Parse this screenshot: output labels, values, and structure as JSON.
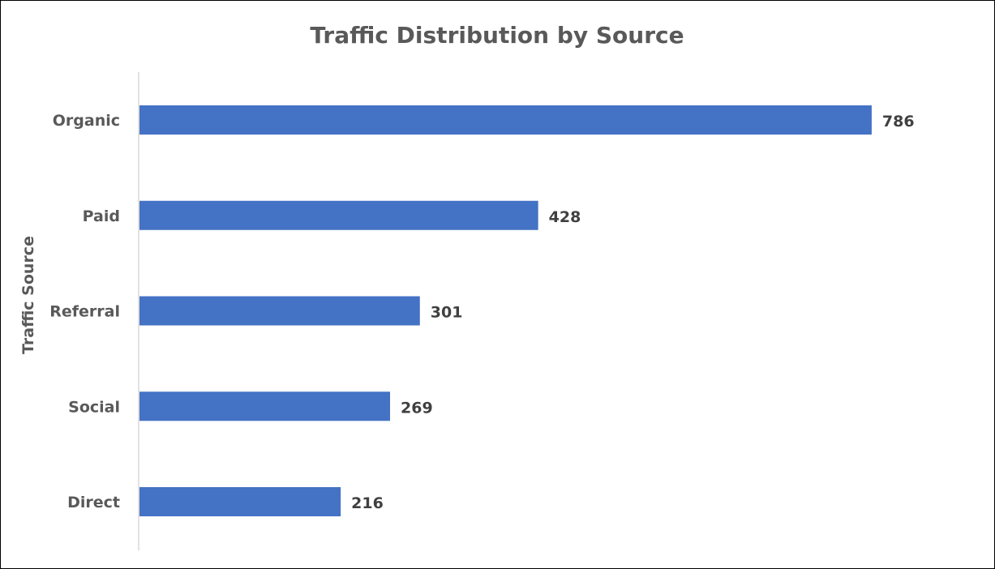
{
  "chart_data": {
    "type": "bar",
    "orientation": "horizontal",
    "title": "Traffic Distribution by Source",
    "xlabel": "",
    "ylabel": "Traffic Source",
    "categories": [
      "Organic",
      "Paid",
      "Referral",
      "Social",
      "Direct"
    ],
    "values": [
      786,
      428,
      301,
      269,
      216
    ],
    "xlim": [
      0,
      800
    ],
    "grid": false,
    "legend": "none",
    "bar_color": "#4472C4",
    "axis_line_color": "#D9D9D9"
  }
}
